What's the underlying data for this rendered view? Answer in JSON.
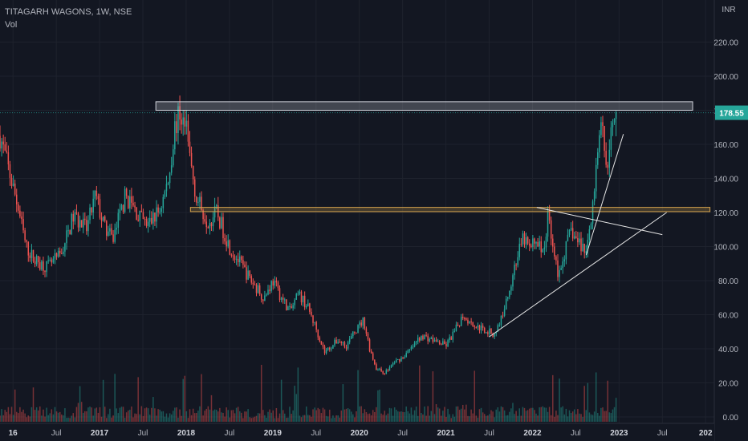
{
  "header": {
    "title": "TITAGARH WAGONS, 1W, NSE",
    "volume_label": "Vol"
  },
  "price_axis": {
    "currency": "INR",
    "last_price": "178.55"
  },
  "colors": {
    "background": "#131722",
    "up": "#26a69a",
    "down": "#ef5350",
    "grid": "#1e222d",
    "text": "#b2b5be",
    "last_price_tag": "#26a69a"
  },
  "chart_data": {
    "type": "candlestick",
    "y_ticks": [
      "0.00",
      "20.00",
      "40.00",
      "60.00",
      "80.00",
      "100.00",
      "120.00",
      "140.00",
      "160.00",
      "180.00",
      "200.00",
      "220.00"
    ],
    "ylim": [
      0,
      230
    ],
    "x_ticks": [
      {
        "label": "16",
        "t": 2016.0
      },
      {
        "label": "Jul",
        "t": 2016.5
      },
      {
        "label": "2017",
        "t": 2017.0
      },
      {
        "label": "Jul",
        "t": 2017.5
      },
      {
        "label": "2018",
        "t": 2018.0
      },
      {
        "label": "Jul",
        "t": 2018.5
      },
      {
        "label": "2019",
        "t": 2019.0
      },
      {
        "label": "Jul",
        "t": 2019.5
      },
      {
        "label": "2020",
        "t": 2020.0
      },
      {
        "label": "Jul",
        "t": 2020.5
      },
      {
        "label": "2021",
        "t": 2021.0
      },
      {
        "label": "Jul",
        "t": 2021.5
      },
      {
        "label": "2022",
        "t": 2022.0
      },
      {
        "label": "Jul",
        "t": 2022.5
      },
      {
        "label": "2023",
        "t": 2023.0
      },
      {
        "label": "Jul",
        "t": 2023.5
      },
      {
        "label": "202",
        "t": 2024.0
      }
    ],
    "xlim": [
      2015.85,
      2024.1
    ],
    "price_path": [
      [
        2015.85,
        165
      ],
      [
        2015.95,
        145
      ],
      [
        2016.05,
        125
      ],
      [
        2016.15,
        100
      ],
      [
        2016.25,
        92
      ],
      [
        2016.4,
        88
      ],
      [
        2016.55,
        95
      ],
      [
        2016.7,
        118
      ],
      [
        2016.85,
        110
      ],
      [
        2016.95,
        130
      ],
      [
        2017.05,
        112
      ],
      [
        2017.15,
        104
      ],
      [
        2017.3,
        130
      ],
      [
        2017.45,
        118
      ],
      [
        2017.55,
        112
      ],
      [
        2017.7,
        122
      ],
      [
        2017.8,
        140
      ],
      [
        2017.87,
        170
      ],
      [
        2017.93,
        178
      ],
      [
        2018.0,
        168
      ],
      [
        2018.05,
        150
      ],
      [
        2018.12,
        128
      ],
      [
        2018.25,
        115
      ],
      [
        2018.35,
        120
      ],
      [
        2018.5,
        100
      ],
      [
        2018.6,
        92
      ],
      [
        2018.75,
        80
      ],
      [
        2018.9,
        70
      ],
      [
        2019.0,
        80
      ],
      [
        2019.1,
        70
      ],
      [
        2019.2,
        62
      ],
      [
        2019.3,
        72
      ],
      [
        2019.4,
        65
      ],
      [
        2019.5,
        52
      ],
      [
        2019.55,
        45
      ],
      [
        2019.6,
        38
      ],
      [
        2019.75,
        45
      ],
      [
        2019.85,
        42
      ],
      [
        2019.95,
        50
      ],
      [
        2020.05,
        57
      ],
      [
        2020.12,
        40
      ],
      [
        2020.2,
        28
      ],
      [
        2020.3,
        26
      ],
      [
        2020.4,
        32
      ],
      [
        2020.5,
        35
      ],
      [
        2020.6,
        40
      ],
      [
        2020.72,
        48
      ],
      [
        2020.85,
        45
      ],
      [
        2021.0,
        42
      ],
      [
        2021.1,
        50
      ],
      [
        2021.2,
        60
      ],
      [
        2021.3,
        55
      ],
      [
        2021.4,
        52
      ],
      [
        2021.5,
        50
      ],
      [
        2021.55,
        48
      ],
      [
        2021.62,
        55
      ],
      [
        2021.7,
        68
      ],
      [
        2021.8,
        90
      ],
      [
        2021.9,
        105
      ],
      [
        2021.97,
        98
      ],
      [
        2022.05,
        105
      ],
      [
        2022.12,
        95
      ],
      [
        2022.18,
        118
      ],
      [
        2022.25,
        100
      ],
      [
        2022.3,
        82
      ],
      [
        2022.38,
        98
      ],
      [
        2022.45,
        110
      ],
      [
        2022.5,
        104
      ],
      [
        2022.58,
        100
      ],
      [
        2022.62,
        96
      ],
      [
        2022.68,
        120
      ],
      [
        2022.75,
        150
      ],
      [
        2022.8,
        170
      ],
      [
        2022.85,
        145
      ],
      [
        2022.9,
        165
      ],
      [
        2022.95,
        172
      ],
      [
        2022.98,
        178.5
      ]
    ],
    "horizontal_zones": [
      {
        "t1": 2017.65,
        "t2": 2023.85,
        "y_low": 180,
        "y_high": 185,
        "color": "#d1d4dc"
      },
      {
        "t1": 2018.05,
        "t2": 2024.05,
        "y_low": 120.5,
        "y_high": 123,
        "color": "#d4a24c"
      }
    ],
    "trendlines": [
      {
        "from": [
          2021.5,
          47
        ],
        "to": [
          2023.55,
          120
        ]
      },
      {
        "from": [
          2022.05,
          123
        ],
        "to": [
          2023.5,
          107
        ]
      },
      {
        "from": [
          2022.62,
          95
        ],
        "to": [
          2023.05,
          166
        ]
      }
    ],
    "last_price": 178.55
  }
}
